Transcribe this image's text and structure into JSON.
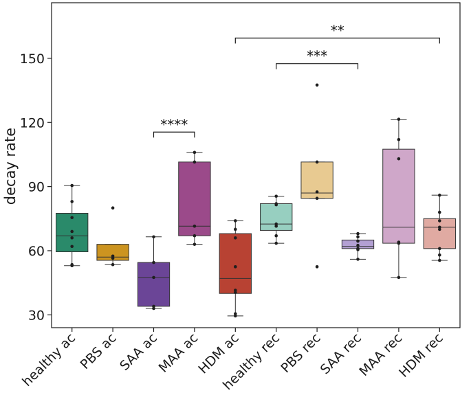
{
  "chart_data": {
    "type": "box",
    "ylabel": "decay rate",
    "xlabel": "",
    "ylim": [
      24,
      176
    ],
    "yticks": [
      30,
      60,
      90,
      120,
      150
    ],
    "grid": false,
    "categories": [
      "healthy ac",
      "PBS ac",
      "SAA ac",
      "MAA ac",
      "HDM ac",
      "healthy rec",
      "PBS rec",
      "SAA rec",
      "MAA rec",
      "HDM rec"
    ],
    "colors": [
      "#2a8a6a",
      "#cc9420",
      "#6b4597",
      "#9b4a8a",
      "#b84233",
      "#97cfc0",
      "#e8ca91",
      "#b3a0d3",
      "#cfa7c9",
      "#e0aaa2"
    ],
    "boxes": [
      {
        "q1": 59.5,
        "median": 67.0,
        "q3": 77.5,
        "whisker_low": 53.0,
        "whisker_high": 90.5,
        "points": [
          90.5,
          83.0,
          75.5,
          69.0,
          66.0,
          62.0,
          53.5,
          53.0
        ]
      },
      {
        "q1": 55.5,
        "median": 57.0,
        "q3": 63.0,
        "whisker_low": 53.5,
        "whisker_high": 63.0,
        "points": [
          80.0,
          57.5,
          56.5,
          53.5
        ]
      },
      {
        "q1": 34.0,
        "median": 47.5,
        "q3": 54.5,
        "whisker_low": 33.0,
        "whisker_high": 66.5,
        "points": [
          66.5,
          54.5,
          47.5,
          34.0,
          33.0
        ]
      },
      {
        "q1": 67.0,
        "median": 71.5,
        "q3": 101.5,
        "whisker_low": 63.0,
        "whisker_high": 106.0,
        "points": [
          106.0,
          101.5,
          71.5,
          67.0,
          63.0
        ]
      },
      {
        "q1": 40.0,
        "median": 47.0,
        "q3": 68.0,
        "whisker_low": 29.5,
        "whisker_high": 74.0,
        "points": [
          74.0,
          70.0,
          66.0,
          52.5,
          41.5,
          40.5,
          30.5,
          29.5
        ]
      },
      {
        "q1": 69.5,
        "median": 72.5,
        "q3": 82.0,
        "whisker_low": 63.5,
        "whisker_high": 85.5,
        "points": [
          85.5,
          82.0,
          81.5,
          72.5,
          71.5,
          67.0,
          63.5
        ]
      },
      {
        "q1": 84.5,
        "median": 87.0,
        "q3": 101.5,
        "whisker_low": 84.5,
        "whisker_high": 101.5,
        "points": [
          137.5,
          101.5,
          87.5,
          84.5,
          52.5
        ]
      },
      {
        "q1": 61.0,
        "median": 62.0,
        "q3": 65.0,
        "whisker_low": 56.0,
        "whisker_high": 68.0,
        "points": [
          68.0,
          66.5,
          64.5,
          62.5,
          61.0,
          60.5,
          56.0
        ]
      },
      {
        "q1": 63.5,
        "median": 71.0,
        "q3": 107.5,
        "whisker_low": 47.5,
        "whisker_high": 121.5,
        "points": [
          121.5,
          112.0,
          103.0,
          64.0,
          63.5,
          47.5
        ]
      },
      {
        "q1": 61.0,
        "median": 71.0,
        "q3": 75.0,
        "whisker_low": 55.5,
        "whisker_high": 86.0,
        "points": [
          86.0,
          78.0,
          74.0,
          71.0,
          70.0,
          61.0,
          58.0,
          55.5
        ]
      }
    ],
    "annotations": [
      {
        "from": "SAA ac",
        "to": "MAA ac",
        "y": 115.5,
        "label": "****"
      },
      {
        "from": "healthy rec",
        "to": "SAA rec",
        "y": 147.5,
        "label": "***"
      },
      {
        "from": "HDM ac",
        "to": "HDM rec",
        "y": 159.5,
        "label": "**"
      }
    ]
  }
}
